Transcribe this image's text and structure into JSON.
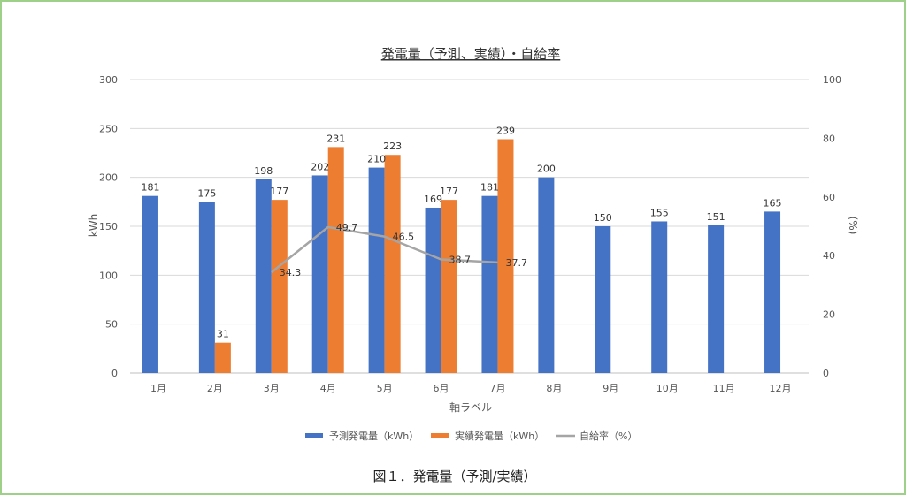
{
  "chart_data": {
    "type": "bar",
    "title": "発電量（予測、実績）・自給率",
    "xlabel": "軸ラベル",
    "ylabel": "kWh",
    "y2label": "(%)",
    "ylim": [
      0,
      300
    ],
    "y2lim": [
      0,
      100
    ],
    "yticks": [
      "0",
      "50",
      "100",
      "150",
      "200",
      "250",
      "300"
    ],
    "y2ticks": [
      "0",
      "20",
      "40",
      "60",
      "80",
      "100"
    ],
    "categories": [
      "1月",
      "2月",
      "3月",
      "4月",
      "5月",
      "6月",
      "7月",
      "8月",
      "9月",
      "10月",
      "11月",
      "12月"
    ],
    "series": [
      {
        "name": "予測発電量（kWh）",
        "type": "bar",
        "axis": "left",
        "color": "#4472c4",
        "values": [
          181,
          175,
          198,
          202,
          210,
          169,
          181,
          200,
          150,
          155,
          151,
          165
        ]
      },
      {
        "name": "実績発電量（kWh）",
        "type": "bar",
        "axis": "left",
        "color": "#ed7d31",
        "values": [
          null,
          31,
          177,
          231,
          223,
          177,
          239,
          null,
          null,
          null,
          null,
          null
        ]
      },
      {
        "name": "自給率（%）",
        "type": "line",
        "axis": "right",
        "color": "#a5a5a5",
        "values": [
          null,
          null,
          34.3,
          49.7,
          46.5,
          38.7,
          37.7,
          null,
          null,
          null,
          null,
          null
        ]
      }
    ],
    "grid": true,
    "legend_position": "bottom"
  },
  "caption": "図１．発電量（予測/実績）"
}
